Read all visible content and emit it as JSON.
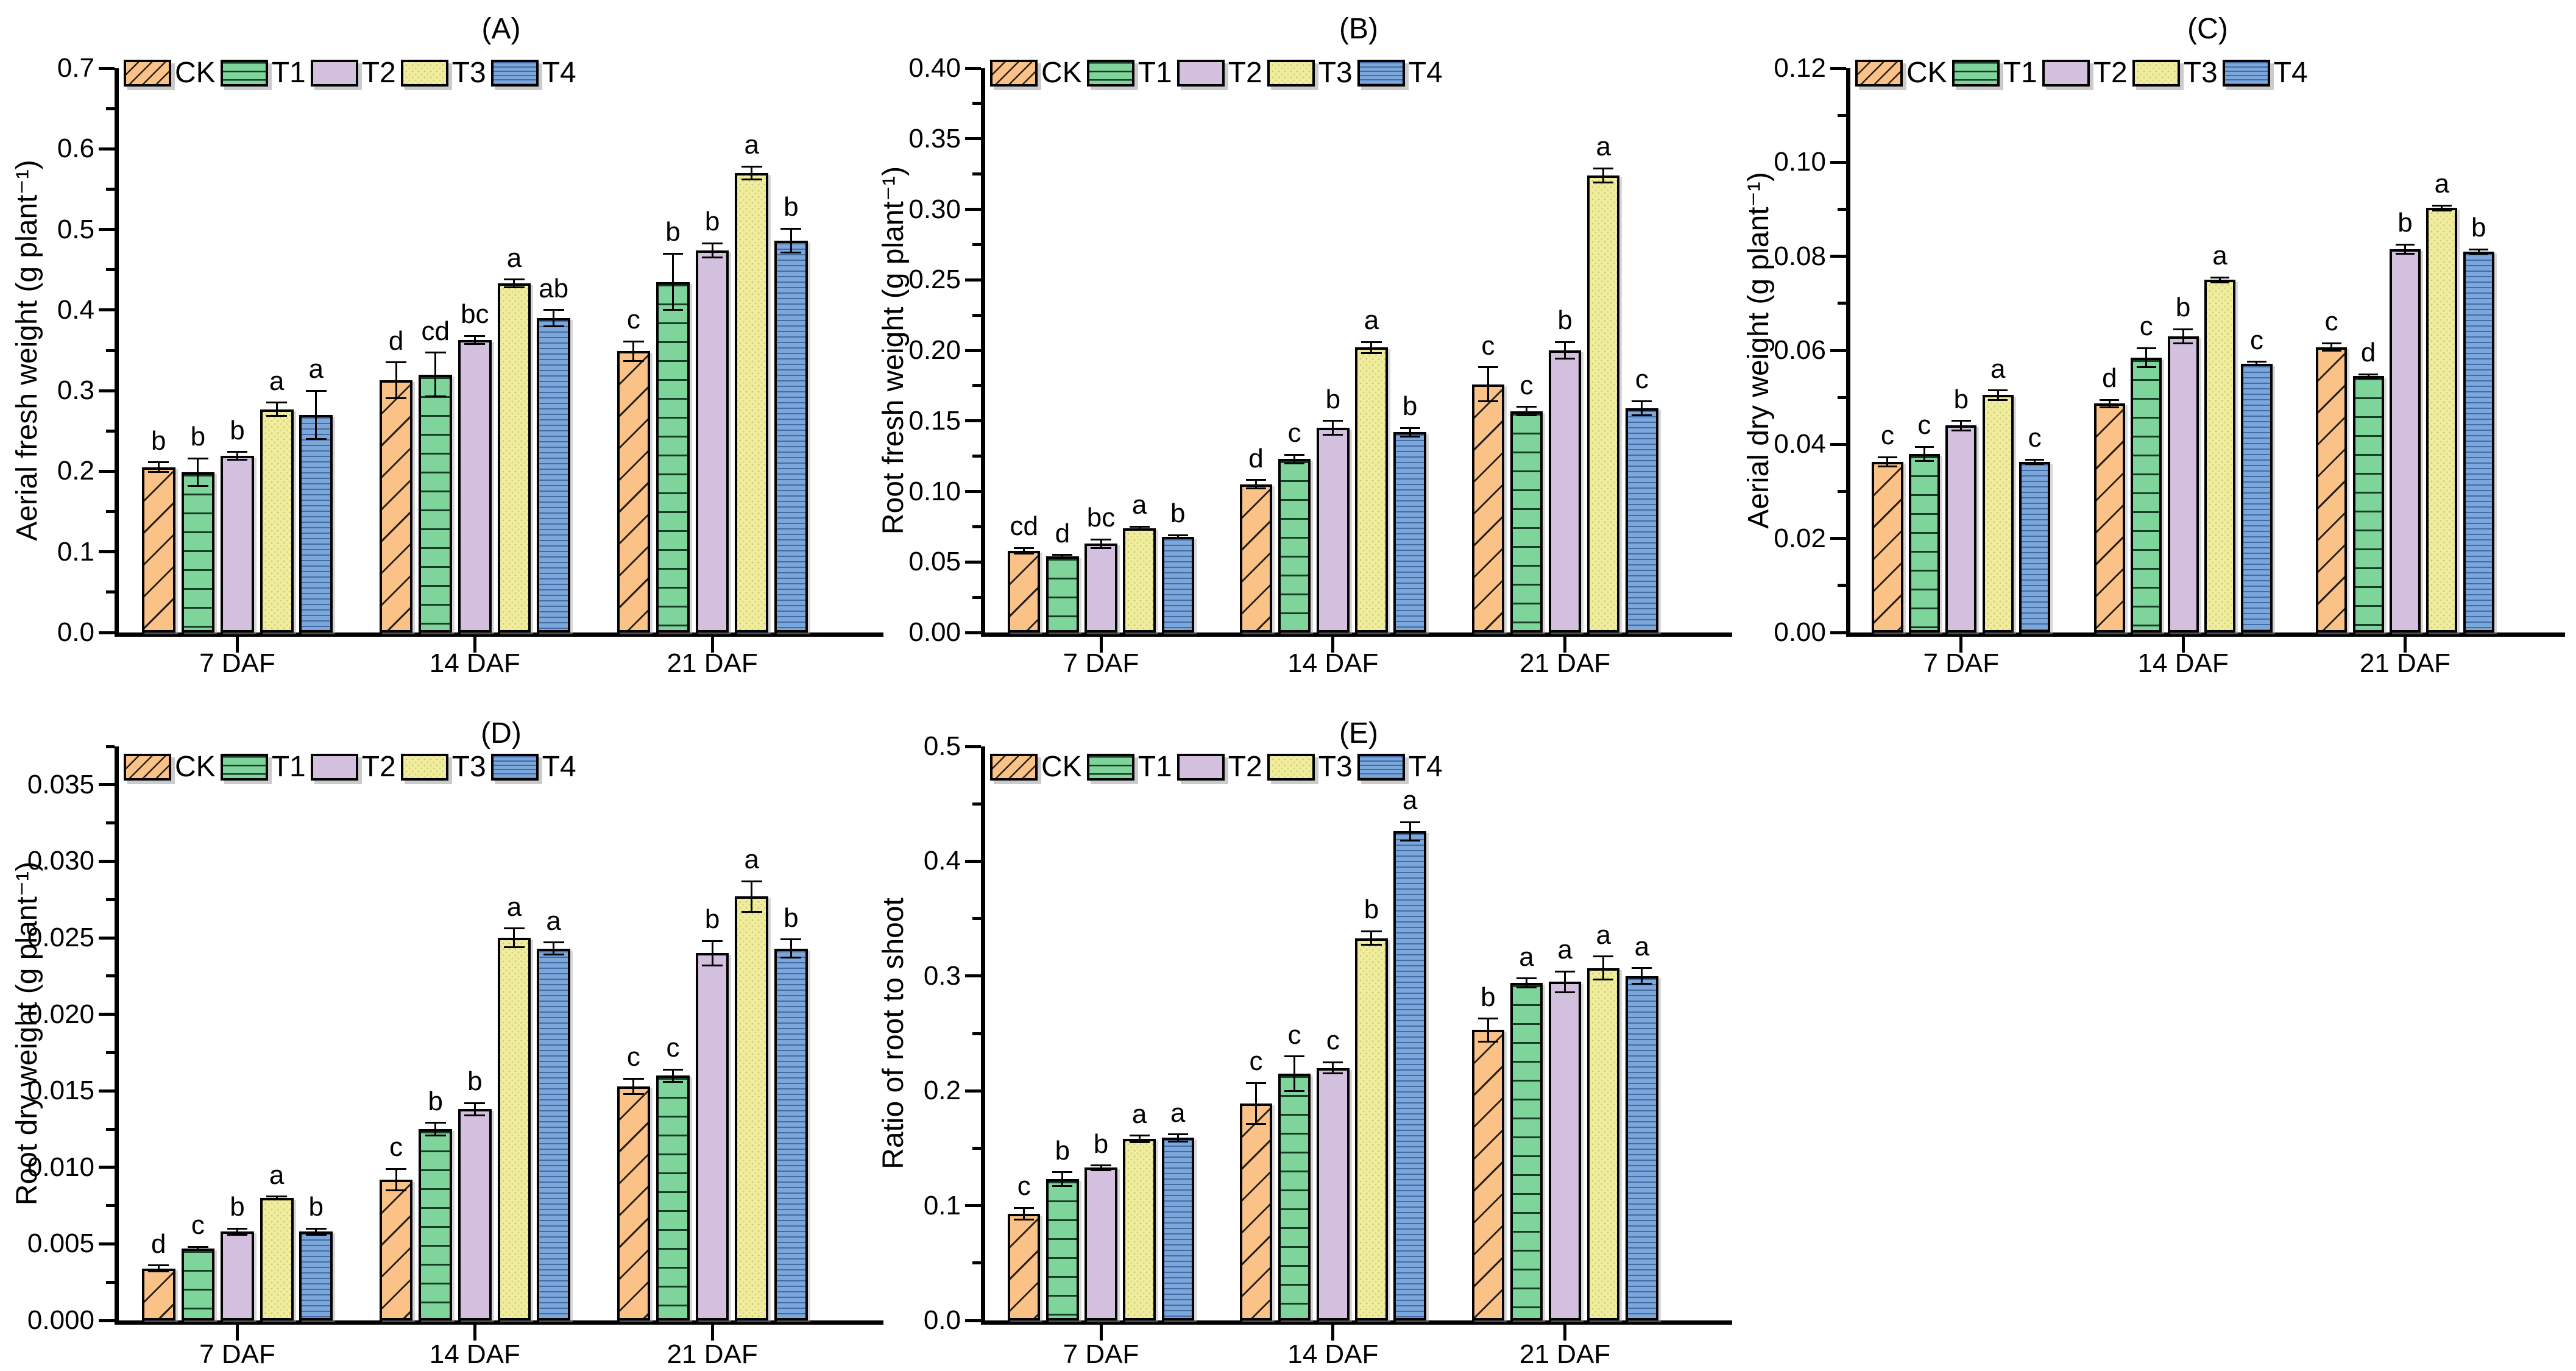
{
  "figure": {
    "background": "#ffffff",
    "group_axis_unit": "DAF"
  },
  "treatments": [
    {
      "name": "CK",
      "fill": "#FAC287",
      "pattern": "diagonal-hatch"
    },
    {
      "name": "T1",
      "fill": "#7FD49B",
      "pattern": "horizontal-lines"
    },
    {
      "name": "T2",
      "fill": "#D3BFDE",
      "pattern": "solid"
    },
    {
      "name": "T3",
      "fill": "#F0EE9E",
      "pattern": "fine-dots"
    },
    {
      "name": "T4",
      "fill": "#7BA7DA",
      "pattern": "fine-horizontal-lines"
    }
  ],
  "chart_data": [
    {
      "type": "bar",
      "id": "A",
      "title": "(A)",
      "ylabel": "Aerial fresh weight (g plant⁻¹)",
      "ymax": 0.7,
      "minor_step": 0.05,
      "grid": false,
      "legend_position": "top-left",
      "yticks": [
        "0.0",
        "0.1",
        "0.2",
        "0.3",
        "0.4",
        "0.5",
        "0.6",
        "0.7"
      ],
      "categories": [
        "7 DAF",
        "14 DAF",
        "21 DAF"
      ],
      "series": [
        {
          "name": "CK",
          "values": [
            0.205,
            0.313,
            0.349
          ],
          "errors": [
            0.006,
            0.022,
            0.012
          ],
          "letters": [
            "b",
            "d",
            "c"
          ]
        },
        {
          "name": "T1",
          "values": [
            0.199,
            0.32,
            0.435
          ],
          "errors": [
            0.017,
            0.027,
            0.035
          ],
          "letters": [
            "b",
            "cd",
            "b"
          ]
        },
        {
          "name": "T2",
          "values": [
            0.219,
            0.363,
            0.474
          ],
          "errors": [
            0.005,
            0.005,
            0.009
          ],
          "letters": [
            "b",
            "bc",
            "b"
          ]
        },
        {
          "name": "T3",
          "values": [
            0.277,
            0.433,
            0.57
          ],
          "errors": [
            0.008,
            0.005,
            0.008
          ],
          "letters": [
            "a",
            "a",
            "a"
          ]
        },
        {
          "name": "T4",
          "values": [
            0.27,
            0.39,
            0.486
          ],
          "errors": [
            0.03,
            0.01,
            0.015
          ],
          "letters": [
            "a",
            "ab",
            "b"
          ]
        }
      ]
    },
    {
      "type": "bar",
      "id": "B",
      "title": "(B)",
      "ylabel": "Root fresh weight (g plant⁻¹)",
      "ymax": 0.4,
      "minor_step": 0.025,
      "grid": false,
      "legend_position": "top-left",
      "yticks": [
        "0.00",
        "0.05",
        "0.10",
        "0.15",
        "0.20",
        "0.25",
        "0.30",
        "0.35",
        "0.40"
      ],
      "categories": [
        "7 DAF",
        "14 DAF",
        "21 DAF"
      ],
      "series": [
        {
          "name": "CK",
          "values": [
            0.058,
            0.105,
            0.176
          ],
          "errors": [
            0.002,
            0.003,
            0.012
          ],
          "letters": [
            "cd",
            "d",
            "c"
          ]
        },
        {
          "name": "T1",
          "values": [
            0.054,
            0.123,
            0.157
          ],
          "errors": [
            0.001,
            0.003,
            0.003
          ],
          "letters": [
            "d",
            "c",
            "c"
          ]
        },
        {
          "name": "T2",
          "values": [
            0.063,
            0.145,
            0.2
          ],
          "errors": [
            0.003,
            0.005,
            0.006
          ],
          "letters": [
            "bc",
            "b",
            "b"
          ]
        },
        {
          "name": "T3",
          "values": [
            0.074,
            0.202,
            0.324
          ],
          "errors": [
            0.001,
            0.004,
            0.005
          ],
          "letters": [
            "a",
            "a",
            "a"
          ]
        },
        {
          "name": "T4",
          "values": [
            0.068,
            0.142,
            0.159
          ],
          "errors": [
            0.001,
            0.003,
            0.005
          ],
          "letters": [
            "b",
            "b",
            "c"
          ]
        }
      ]
    },
    {
      "type": "bar",
      "id": "C",
      "title": "(C)",
      "ylabel": "Aerial dry weight (g plant⁻¹)",
      "ymax": 0.12,
      "minor_step": 0.01,
      "grid": false,
      "legend_position": "top-left",
      "yticks": [
        "0.00",
        "0.02",
        "0.04",
        "0.06",
        "0.08",
        "0.10",
        "0.12"
      ],
      "categories": [
        "7 DAF",
        "14 DAF",
        "21 DAF"
      ],
      "series": [
        {
          "name": "CK",
          "values": [
            0.0363,
            0.0487,
            0.0607
          ],
          "errors": [
            0.001,
            0.0008,
            0.0008
          ],
          "letters": [
            "c",
            "d",
            "c"
          ]
        },
        {
          "name": "T1",
          "values": [
            0.038,
            0.0585,
            0.0545
          ],
          "errors": [
            0.0015,
            0.002,
            0.0004
          ],
          "letters": [
            "c",
            "c",
            "d"
          ]
        },
        {
          "name": "T2",
          "values": [
            0.044,
            0.063,
            0.0815
          ],
          "errors": [
            0.001,
            0.0015,
            0.001
          ],
          "letters": [
            "b",
            "b",
            "b"
          ]
        },
        {
          "name": "T3",
          "values": [
            0.0505,
            0.075,
            0.0903
          ],
          "errors": [
            0.001,
            0.0005,
            0.0005
          ],
          "letters": [
            "a",
            "a",
            "a"
          ]
        },
        {
          "name": "T4",
          "values": [
            0.0363,
            0.0572,
            0.081
          ],
          "errors": [
            0.0005,
            0.0004,
            0.0005
          ],
          "letters": [
            "c",
            "c",
            "b"
          ]
        }
      ]
    },
    {
      "type": "bar",
      "id": "D",
      "title": "(D)",
      "ylabel": "Root dry weight (g plant⁻¹)",
      "ymax": 0.0375,
      "minor_step": 0.0025,
      "grid": false,
      "legend_position": "top-left",
      "yticks": [
        "0.000",
        "0.005",
        "0.010",
        "0.015",
        "0.020",
        "0.025",
        "0.030",
        "0.035"
      ],
      "categories": [
        "7 DAF",
        "14 DAF",
        "21 DAF"
      ],
      "series": [
        {
          "name": "CK",
          "values": [
            0.0034,
            0.0092,
            0.0153
          ],
          "errors": [
            0.0002,
            0.0007,
            0.0005
          ],
          "letters": [
            "d",
            "c",
            "c"
          ]
        },
        {
          "name": "T1",
          "values": [
            0.0047,
            0.0125,
            0.016
          ],
          "errors": [
            0.0001,
            0.0004,
            0.0004
          ],
          "letters": [
            "c",
            "b",
            "c"
          ]
        },
        {
          "name": "T2",
          "values": [
            0.0058,
            0.0138,
            0.024
          ],
          "errors": [
            0.0002,
            0.0004,
            0.0008
          ],
          "letters": [
            "b",
            "b",
            "b"
          ]
        },
        {
          "name": "T3",
          "values": [
            0.008,
            0.025,
            0.0277
          ],
          "errors": [
            0.0001,
            0.0006,
            0.001
          ],
          "letters": [
            "a",
            "a",
            "a"
          ]
        },
        {
          "name": "T4",
          "values": [
            0.0058,
            0.0243,
            0.0243
          ],
          "errors": [
            0.0002,
            0.0004,
            0.0006
          ],
          "letters": [
            "b",
            "a",
            "b"
          ]
        }
      ]
    },
    {
      "type": "bar",
      "id": "E",
      "title": "(E)",
      "ylabel": "Ratio of root to shoot",
      "ymax": 0.5,
      "minor_step": 0.05,
      "grid": false,
      "legend_position": "top-left",
      "yticks": [
        "0.0",
        "0.1",
        "0.2",
        "0.3",
        "0.4",
        "0.5"
      ],
      "categories": [
        "7 DAF",
        "14 DAF",
        "21 DAF"
      ],
      "series": [
        {
          "name": "CK",
          "values": [
            0.093,
            0.189,
            0.253
          ],
          "errors": [
            0.005,
            0.018,
            0.01
          ],
          "letters": [
            "c",
            "c",
            "b"
          ]
        },
        {
          "name": "T1",
          "values": [
            0.123,
            0.215,
            0.294
          ],
          "errors": [
            0.006,
            0.015,
            0.004
          ],
          "letters": [
            "b",
            "c",
            "a"
          ]
        },
        {
          "name": "T2",
          "values": [
            0.133,
            0.22,
            0.295
          ],
          "errors": [
            0.002,
            0.005,
            0.009
          ],
          "letters": [
            "b",
            "c",
            "a"
          ]
        },
        {
          "name": "T3",
          "values": [
            0.158,
            0.333,
            0.307
          ],
          "errors": [
            0.003,
            0.006,
            0.01
          ],
          "letters": [
            "a",
            "b",
            "a"
          ]
        },
        {
          "name": "T4",
          "values": [
            0.159,
            0.426,
            0.3
          ],
          "errors": [
            0.003,
            0.008,
            0.007
          ],
          "letters": [
            "a",
            "a",
            "a"
          ]
        }
      ]
    }
  ]
}
